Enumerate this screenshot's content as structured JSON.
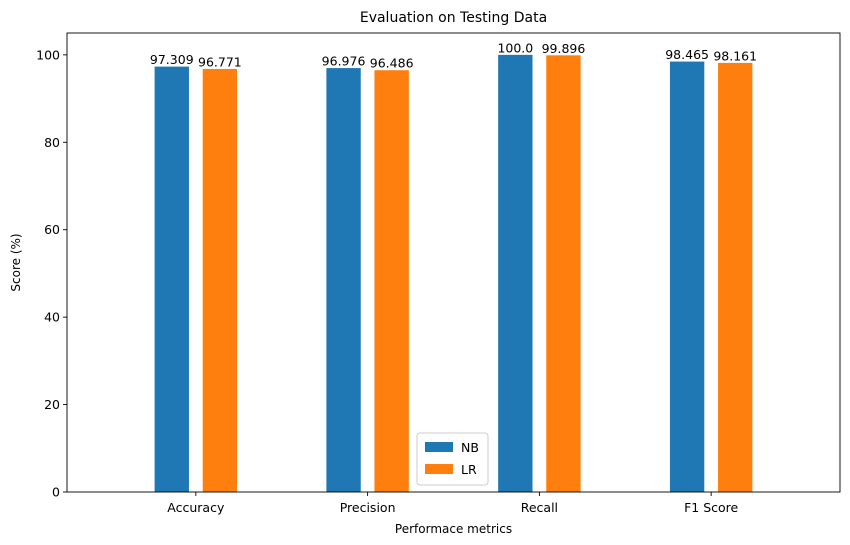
{
  "chart_data": {
    "type": "bar",
    "title": "Evaluation on Testing Data",
    "xlabel": "Performace metrics",
    "ylabel": "Score (%)",
    "categories": [
      "Accuracy",
      "Precision",
      "Recall",
      "F1 Score"
    ],
    "series": [
      {
        "name": "NB",
        "color": "#1f77b4",
        "values": [
          97.309,
          96.976,
          100.0,
          98.465
        ],
        "labels": [
          "97.309",
          "96.976",
          "100.0",
          "98.465"
        ]
      },
      {
        "name": "LR",
        "color": "#ff7f0e",
        "values": [
          96.771,
          96.486,
          99.896,
          98.161
        ],
        "labels": [
          "96.771",
          "96.486",
          "99.896",
          "98.161"
        ]
      }
    ],
    "ylim": [
      0,
      105
    ],
    "yticks": [
      0,
      20,
      40,
      60,
      80,
      100
    ],
    "grid": false,
    "legend_position": "bottom-center"
  }
}
